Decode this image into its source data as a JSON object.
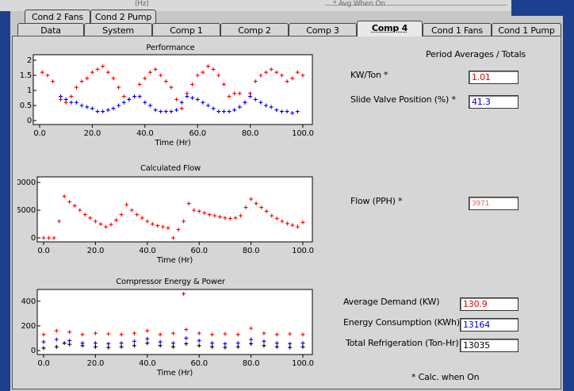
{
  "background": {
    "faint_left": "(Hz)",
    "faint_right": "* Avg When On"
  },
  "tabs_back": [
    {
      "label": "Cond 2 Fans"
    },
    {
      "label": "Cond 2 Pump"
    }
  ],
  "tabs_front": [
    {
      "label": "Data"
    },
    {
      "label": "System"
    },
    {
      "label": "Comp 1"
    },
    {
      "label": "Comp 2"
    },
    {
      "label": "Comp 3"
    },
    {
      "label": "Comp 4"
    },
    {
      "label": "Cond 1 Fans"
    },
    {
      "label": "Cond 1 Pump"
    }
  ],
  "active_tab": "Comp 4",
  "colors": {
    "red": "#ff0000",
    "blue": "#0000ff",
    "black": "#000000",
    "value_red": "#e00000",
    "value_blue": "#0000cc"
  },
  "right_panel": {
    "section_title": "Period Averages / Totals",
    "kw_ton": {
      "label": "KW/Ton *",
      "value": "1.01"
    },
    "slide_valve": {
      "label": "Slide Valve Position (%) *",
      "value": "41.3"
    },
    "flow": {
      "label": "Flow (PPH) *",
      "value": "3971"
    },
    "avg_demand": {
      "label": "Average Demand (KW)",
      "value": "130.9"
    },
    "energy": {
      "label": "Energy Consumption (KWh)",
      "value": "13164"
    },
    "refrigeration": {
      "label": "Total Refrigeration (Ton-Hr)",
      "value": "13035"
    },
    "footnote": "* Calc. when On"
  },
  "chart_data": [
    {
      "type": "scatter",
      "title": "Performance",
      "xlabel": "Time (Hr)",
      "ylabel": "",
      "xlim": [
        0,
        100
      ],
      "ylim": [
        0,
        2
      ],
      "xticks": [
        "0.0",
        "20.0",
        "40.0",
        "60.0",
        "80.0",
        "100.0"
      ],
      "yticks": [
        "0",
        "0.5",
        "1",
        "1.5",
        "2"
      ],
      "series": [
        {
          "color": "red",
          "x": [
            1,
            3,
            5,
            8,
            10,
            12,
            14,
            16,
            18,
            20,
            22,
            24,
            26,
            28,
            30,
            32,
            34,
            36,
            38,
            40,
            42,
            44,
            46,
            48,
            50,
            52,
            54,
            56,
            58,
            60,
            62,
            64,
            66,
            68,
            70,
            72,
            74,
            76,
            78,
            80,
            82,
            84,
            86,
            88,
            90,
            92,
            94,
            96,
            98,
            100
          ],
          "y": [
            1.6,
            1.5,
            1.3,
            0.7,
            0.6,
            0.8,
            1.1,
            1.3,
            1.4,
            1.6,
            1.7,
            1.8,
            1.6,
            1.4,
            1.1,
            0.8,
            0.7,
            0.8,
            1.2,
            1.4,
            1.6,
            1.7,
            1.5,
            1.3,
            1.1,
            0.7,
            0.4,
            0.9,
            1.2,
            1.5,
            1.6,
            1.8,
            1.7,
            1.5,
            1.2,
            0.8,
            0.9,
            0.9,
            0.6,
            0.9,
            1.3,
            1.5,
            1.6,
            1.7,
            1.6,
            1.5,
            1.3,
            1.4,
            1.6,
            1.5
          ]
        },
        {
          "color": "blue",
          "x": [
            8,
            10,
            12,
            14,
            16,
            18,
            20,
            22,
            24,
            26,
            28,
            30,
            32,
            34,
            36,
            38,
            40,
            42,
            44,
            46,
            48,
            50,
            52,
            54,
            56,
            58,
            60,
            62,
            64,
            66,
            68,
            70,
            72,
            74,
            76,
            78,
            80,
            82,
            84,
            86,
            88,
            90,
            92,
            94,
            96,
            98
          ],
          "y": [
            0.8,
            0.7,
            0.6,
            0.6,
            0.5,
            0.45,
            0.4,
            0.3,
            0.3,
            0.35,
            0.4,
            0.5,
            0.6,
            0.7,
            0.8,
            0.8,
            0.6,
            0.5,
            0.35,
            0.3,
            0.3,
            0.3,
            0.35,
            0.6,
            0.8,
            0.75,
            0.7,
            0.6,
            0.5,
            0.4,
            0.3,
            0.3,
            0.3,
            0.35,
            0.45,
            0.6,
            0.8,
            0.7,
            0.6,
            0.5,
            0.45,
            0.35,
            0.3,
            0.3,
            0.25,
            0.3
          ]
        }
      ]
    },
    {
      "type": "scatter",
      "title": "Calculated Flow",
      "xlabel": "Time (Hr)",
      "ylabel": "",
      "xlim": [
        0,
        100
      ],
      "ylim": [
        0,
        10000
      ],
      "xticks": [
        "0.0",
        "20.0",
        "40.0",
        "60.0",
        "80.0",
        "100.0"
      ],
      "yticks": [
        "0",
        "5000",
        "10000"
      ],
      "series": [
        {
          "color": "red",
          "x": [
            0,
            2,
            4,
            6,
            8,
            10,
            12,
            14,
            16,
            18,
            20,
            22,
            24,
            26,
            28,
            30,
            32,
            34,
            36,
            38,
            40,
            42,
            44,
            46,
            48,
            50,
            52,
            54,
            56,
            58,
            60,
            62,
            64,
            66,
            68,
            70,
            72,
            74,
            76,
            78,
            80,
            82,
            84,
            86,
            88,
            90,
            92,
            94,
            96,
            98,
            100
          ],
          "y": [
            0,
            0,
            0,
            3000,
            7500,
            6500,
            5800,
            5000,
            4200,
            3600,
            3000,
            2500,
            2000,
            2400,
            3200,
            4200,
            6000,
            5000,
            4200,
            3600,
            3000,
            2500,
            2200,
            2000,
            1800,
            0,
            1500,
            3000,
            6200,
            5000,
            4800,
            4500,
            4200,
            4000,
            3800,
            3600,
            3500,
            3600,
            4000,
            5500,
            7000,
            6200,
            5500,
            4800,
            4000,
            3500,
            3000,
            2600,
            2300,
            2000,
            2800
          ]
        }
      ]
    },
    {
      "type": "scatter",
      "title": "Compressor Energy & Power",
      "xlabel": "Time (Hr)",
      "ylabel": "",
      "xlim": [
        0,
        100
      ],
      "ylim": [
        0,
        450
      ],
      "xticks": [
        "0.0",
        "20.0",
        "40.0",
        "60.0",
        "80.0",
        "100.0"
      ],
      "yticks": [
        "0",
        "200",
        "400"
      ],
      "series": [
        {
          "color": "red",
          "x": [
            0,
            5,
            10,
            15,
            20,
            25,
            30,
            35,
            40,
            45,
            50,
            54,
            55,
            60,
            65,
            70,
            75,
            80,
            85,
            90,
            95,
            100
          ],
          "y": [
            130,
            160,
            150,
            130,
            140,
            135,
            130,
            140,
            160,
            130,
            140,
            460,
            170,
            140,
            130,
            135,
            130,
            180,
            140,
            130,
            135,
            130
          ]
        },
        {
          "color": "blue",
          "x": [
            0,
            5,
            10,
            15,
            20,
            25,
            30,
            35,
            40,
            45,
            50,
            55,
            60,
            65,
            70,
            75,
            80,
            85,
            90,
            95,
            100
          ],
          "y": [
            70,
            90,
            80,
            60,
            60,
            55,
            60,
            75,
            95,
            70,
            60,
            100,
            80,
            60,
            55,
            60,
            90,
            75,
            60,
            55,
            60
          ]
        },
        {
          "color": "black",
          "x": [
            0,
            5,
            8,
            10,
            15,
            20,
            25,
            30,
            35,
            40,
            45,
            50,
            55,
            60,
            65,
            70,
            75,
            80,
            85,
            90,
            95,
            100
          ],
          "y": [
            20,
            30,
            60,
            50,
            40,
            30,
            25,
            30,
            40,
            60,
            40,
            30,
            55,
            40,
            30,
            25,
            30,
            55,
            40,
            30,
            25,
            30
          ]
        }
      ]
    }
  ]
}
